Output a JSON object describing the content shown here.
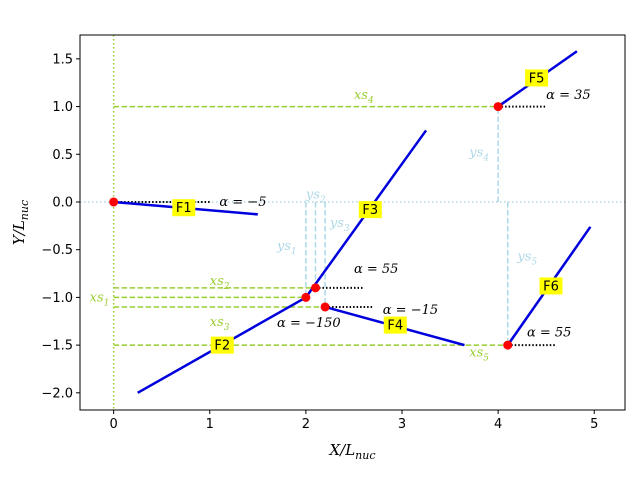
{
  "chart_data": {
    "type": "line",
    "xlabel": "X/L_nuc",
    "ylabel": "Y/L_nuc",
    "xlim": [
      -0.35,
      5.32
    ],
    "ylim": [
      -2.18,
      1.75
    ],
    "xticks": [
      0,
      1,
      2,
      3,
      4,
      5
    ],
    "xtick_labels": [
      "0",
      "1",
      "2",
      "3",
      "4",
      "5"
    ],
    "yticks": [
      -2.0,
      -1.5,
      -1.0,
      -0.5,
      0.0,
      0.5,
      1.0,
      1.5
    ],
    "ytick_labels": [
      "−2.0",
      "−1.5",
      "−1.0",
      "−0.5",
      "0.0",
      "0.5",
      "1.0",
      "1.5"
    ],
    "grid": false,
    "fractures": [
      {
        "name": "F1",
        "x": [
          0.0,
          1.5
        ],
        "y": [
          0.0,
          -0.13
        ],
        "label_at": [
          0.73,
          -0.06
        ]
      },
      {
        "name": "F2",
        "x": [
          0.25,
          2.0
        ],
        "y": [
          -2.0,
          -1.0
        ],
        "label_at": [
          1.13,
          -1.5
        ]
      },
      {
        "name": "F3",
        "x": [
          2.0,
          3.25
        ],
        "y": [
          -1.0,
          0.75
        ],
        "label_at": [
          2.67,
          -0.08
        ]
      },
      {
        "name": "F4",
        "x": [
          2.2,
          3.65
        ],
        "y": [
          -1.1,
          -1.5
        ],
        "label_at": [
          2.93,
          -1.29
        ]
      },
      {
        "name": "F5",
        "x": [
          4.0,
          4.82
        ],
        "y": [
          1.0,
          1.58
        ],
        "label_at": [
          4.4,
          1.3
        ]
      },
      {
        "name": "F6",
        "x": [
          4.1,
          4.96
        ],
        "y": [
          -1.5,
          -0.26
        ],
        "label_at": [
          4.55,
          -0.88
        ]
      }
    ],
    "intersection_points": [
      {
        "x": 0.0,
        "y": 0.0
      },
      {
        "x": 2.0,
        "y": -1.0
      },
      {
        "x": 2.1,
        "y": -0.9
      },
      {
        "x": 2.2,
        "y": -1.1
      },
      {
        "x": 4.0,
        "y": 1.0
      },
      {
        "x": 4.1,
        "y": -1.5
      }
    ],
    "reference_lines": [
      {
        "kind": "hline",
        "y": 0.0,
        "color": "#add8e6",
        "style": "dotted"
      },
      {
        "kind": "vline",
        "x": 0.0,
        "color": "#9acd32",
        "style": "dotted"
      }
    ],
    "xs_dashes": [
      {
        "y": -0.9,
        "x0": 0.0,
        "x1": 2.1
      },
      {
        "y": -1.0,
        "x0": 0.0,
        "x1": 2.0
      },
      {
        "y": -1.1,
        "x0": 0.0,
        "x1": 2.2
      },
      {
        "y": 1.0,
        "x0": 0.0,
        "x1": 4.0
      },
      {
        "y": -1.5,
        "x0": 0.0,
        "x1": 4.1
      }
    ],
    "ys_dashes": [
      {
        "x": 2.0,
        "y0": 0.0,
        "y1": -1.0
      },
      {
        "x": 2.1,
        "y0": 0.0,
        "y1": -0.9
      },
      {
        "x": 2.2,
        "y0": 0.0,
        "y1": -1.1
      },
      {
        "x": 4.0,
        "y0": 0.0,
        "y1": 1.0
      },
      {
        "x": 4.1,
        "y0": 0.0,
        "y1": -1.5
      }
    ],
    "alpha_marks": [
      {
        "x0": 0.0,
        "x1": 1.0,
        "y": 0.0
      },
      {
        "x0": 2.1,
        "x1": 2.6,
        "y": -0.9
      },
      {
        "x0": 2.2,
        "x1": 2.7,
        "y": -1.1
      },
      {
        "x0": 4.0,
        "x1": 4.5,
        "y": 1.0
      },
      {
        "x0": 4.1,
        "x1": 4.6,
        "y": -1.5
      }
    ],
    "xs_annotations": [
      {
        "base": "xs",
        "sub": "1",
        "x": -0.25,
        "y": -1.0
      },
      {
        "base": "xs",
        "sub": "2",
        "x": 1.0,
        "y": -0.83
      },
      {
        "base": "xs",
        "sub": "3",
        "x": 1.0,
        "y": -1.26
      },
      {
        "base": "xs",
        "sub": "4",
        "x": 2.5,
        "y": 1.12
      },
      {
        "base": "xs",
        "sub": "5",
        "x": 3.7,
        "y": -1.58
      }
    ],
    "ys_annotations": [
      {
        "base": "ys",
        "sub": "1",
        "x": 1.7,
        "y": -0.46
      },
      {
        "base": "ys",
        "sub": "2",
        "x": 2.0,
        "y": 0.08
      },
      {
        "base": "ys",
        "sub": "3",
        "x": 2.25,
        "y": -0.22
      },
      {
        "base": "ys",
        "sub": "4",
        "x": 3.7,
        "y": 0.52
      },
      {
        "base": "ys",
        "sub": "5",
        "x": 4.2,
        "y": -0.57
      }
    ],
    "alpha_annotations": [
      {
        "text": "α = −5",
        "x": 1.1,
        "y": 0.0
      },
      {
        "text": "α = 55",
        "x": 2.5,
        "y": -0.7
      },
      {
        "text": "α = −150",
        "x": 1.7,
        "y": -1.27
      },
      {
        "text": "α = −15",
        "x": 2.8,
        "y": -1.13
      },
      {
        "text": "α = 35",
        "x": 4.5,
        "y": 1.12
      },
      {
        "text": "α = 55",
        "x": 4.3,
        "y": -1.37
      }
    ],
    "colors": {
      "fracture": "#0000dd",
      "point": "#ff0000",
      "xs": "#9acd32",
      "ys": "#add8e6",
      "tag_bg": "#ffff00",
      "alpha_line": "#000000"
    }
  }
}
